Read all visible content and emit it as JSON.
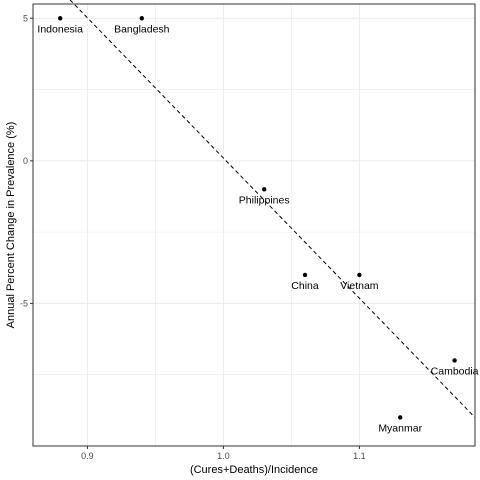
{
  "chart_data": {
    "type": "scatter",
    "title": "",
    "xlabel": "(Cures+Deaths)/Incidence",
    "ylabel": "Annual Percent Change in Prevalence (%)",
    "xlim": [
      0.86,
      1.185
    ],
    "ylim": [
      -10,
      5.5
    ],
    "x_ticks": [
      0.9,
      1.0,
      1.1
    ],
    "x_tick_labels": [
      "0.9",
      "1.0",
      "1.1"
    ],
    "y_ticks": [
      -5,
      0,
      5
    ],
    "y_tick_labels": [
      "-5",
      "0",
      "5"
    ],
    "grid": true,
    "legend": "none",
    "points": [
      {
        "label": "Indonesia",
        "x": 0.88,
        "y": 5.0
      },
      {
        "label": "Bangladesh",
        "x": 0.94,
        "y": 5.0
      },
      {
        "label": "Philippines",
        "x": 1.03,
        "y": -1.0
      },
      {
        "label": "China",
        "x": 1.06,
        "y": -4.0
      },
      {
        "label": "Vietnam",
        "x": 1.1,
        "y": -4.0
      },
      {
        "label": "Cambodia",
        "x": 1.17,
        "y": -7.0
      },
      {
        "label": "Myanmar",
        "x": 1.13,
        "y": -9.0
      }
    ],
    "trend_line": {
      "style": "dashed",
      "x": [
        0.88,
        1.185
      ],
      "y": [
        6.0,
        -9.0
      ]
    },
    "colors": {
      "points": "#000000",
      "grid": "#ebebeb",
      "panel_border": "#333333",
      "trend": "#000000"
    }
  }
}
